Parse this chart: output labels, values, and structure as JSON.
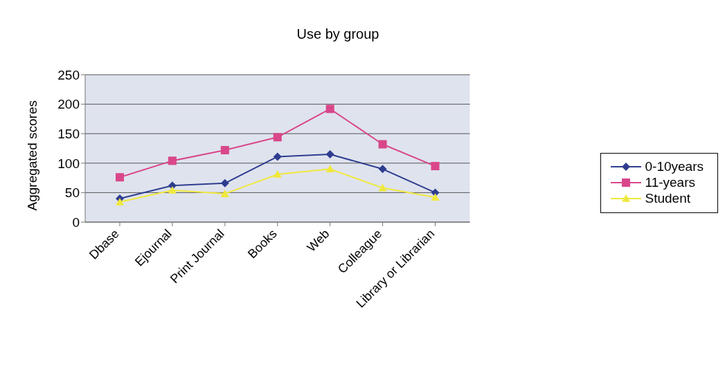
{
  "chart_data": {
    "type": "line",
    "title": "Use by group",
    "ylabel": "Aggregated scores",
    "categories": [
      "Dbase",
      "Ejournal",
      "Print Journal",
      "Books",
      "Web",
      "Colleague",
      "Library or Librarian"
    ],
    "series": [
      {
        "name": "0-10years",
        "color": "#2e3d8f",
        "values": [
          40,
          62,
          66,
          111,
          115,
          90,
          50
        ],
        "marker": "diamond"
      },
      {
        "name": "11-years",
        "color": "#d9478a",
        "values": [
          76,
          104,
          122,
          144,
          192,
          132,
          95
        ],
        "marker": "square"
      },
      {
        "name": "Student",
        "color": "#f0e83c",
        "values": [
          34,
          54,
          48,
          81,
          90,
          58,
          42
        ],
        "marker": "triangle"
      }
    ],
    "ylim": [
      0,
      250
    ],
    "yticks": [
      0,
      50,
      100,
      150,
      200,
      250
    ],
    "grid": "y",
    "legend": "right"
  }
}
